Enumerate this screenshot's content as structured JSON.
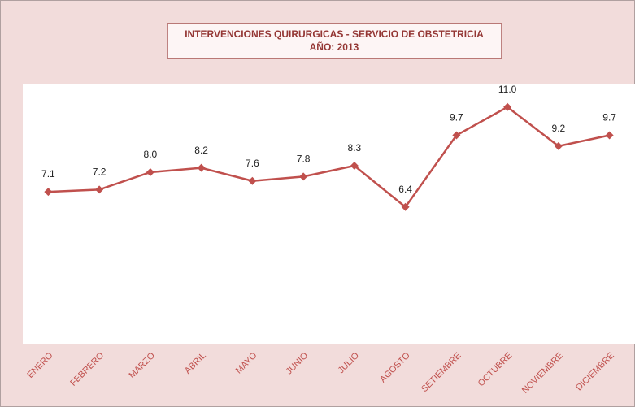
{
  "chart_data": {
    "type": "line",
    "title": "INTERVENCIONES QUIRURGICAS - SERVICIO DE OBSTETRICIA",
    "subtitle": "AÑO: 2013",
    "categories": [
      "ENERO",
      "FEBRERO",
      "MARZO",
      "ABRIL",
      "MAYO",
      "JUNIO",
      "JULIO",
      "AGOSTO",
      "SETIEMBRE",
      "OCTUBRE",
      "NOVIEMBRE",
      "DICIEMBRE"
    ],
    "values": [
      7.1,
      7.2,
      8.0,
      8.2,
      7.6,
      7.8,
      8.3,
      6.4,
      9.7,
      11.0,
      9.2,
      9.7
    ],
    "value_labels": [
      "7.1",
      "7.2",
      "8.0",
      "8.2",
      "7.6",
      "7.8",
      "8.3",
      "6.4",
      "9.7",
      "11.0",
      "9.2",
      "9.7"
    ],
    "color": "#c0504d",
    "ylim": [
      0,
      12
    ]
  }
}
